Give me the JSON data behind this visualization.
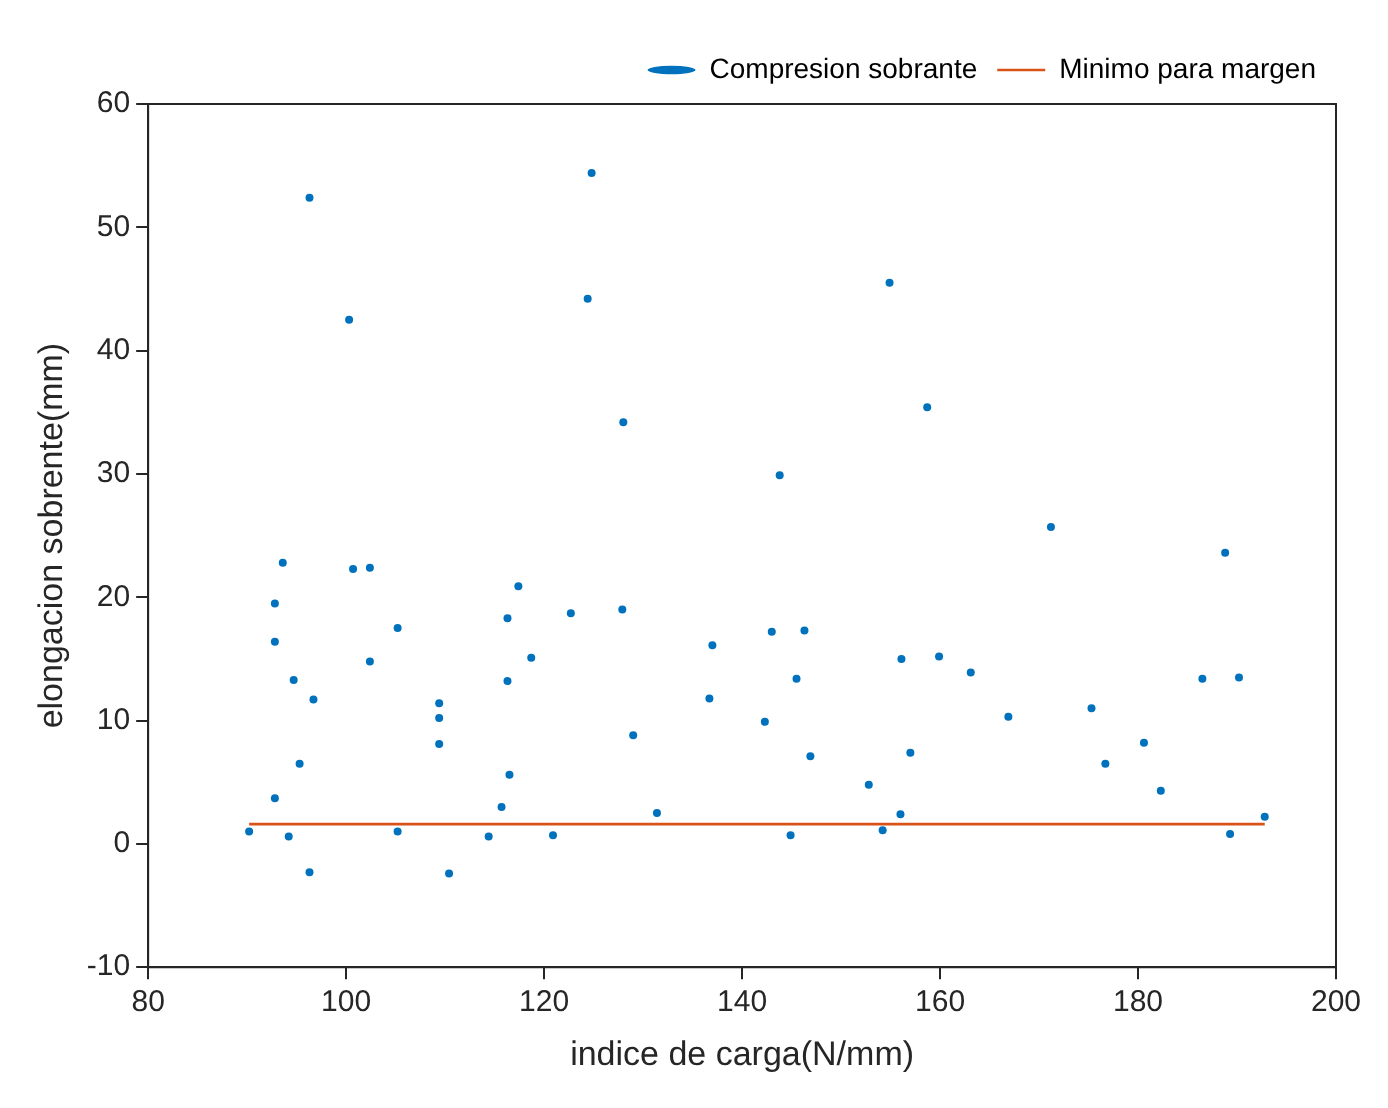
{
  "chart_data": {
    "type": "scatter",
    "xlabel": "indice de carga(N/mm)",
    "ylabel": "elongacion sobrente(mm)",
    "xlim": [
      80,
      200
    ],
    "xticks": [
      80,
      100,
      120,
      140,
      160,
      180,
      200
    ],
    "ylim": [
      -10,
      60
    ],
    "yticks": [
      -10,
      0,
      10,
      20,
      30,
      40,
      50,
      60
    ],
    "grid": false,
    "legend": "top right",
    "marker": "circle",
    "series": [
      {
        "name": "Compresion sobrante",
        "color": "#0072bd",
        "x": [
          90.2,
          92.8,
          92.8,
          92.8,
          93.6,
          94.2,
          94.7,
          95.3,
          96.3,
          96.3,
          96.7,
          100.3,
          100.7,
          102.4,
          102.4,
          105.2,
          105.2,
          109.4,
          109.4,
          109.4,
          110.4,
          114.4,
          115.7,
          116.3,
          116.3,
          116.5,
          117.4,
          118.7,
          120.9,
          122.7,
          124.4,
          124.8,
          127.9,
          128.0,
          129.0,
          131.4,
          136.7,
          137.0,
          142.3,
          143.0,
          143.8,
          144.9,
          145.5,
          146.3,
          146.9,
          152.8,
          154.2,
          154.9,
          156.0,
          156.1,
          157.0,
          158.7,
          159.9,
          163.1,
          166.9,
          171.2,
          175.3,
          176.7,
          180.6,
          182.3,
          186.5,
          188.8,
          189.3,
          190.2,
          192.8
        ],
        "values": [
          1.0,
          19.5,
          16.4,
          3.7,
          22.8,
          0.6,
          13.3,
          6.5,
          52.4,
          -2.3,
          11.7,
          42.5,
          22.3,
          22.4,
          14.8,
          17.5,
          1.0,
          11.4,
          10.2,
          8.1,
          -2.4,
          0.6,
          3.0,
          18.3,
          13.2,
          5.6,
          20.9,
          15.1,
          0.7,
          18.7,
          44.2,
          54.4,
          19.0,
          34.2,
          8.8,
          2.5,
          11.8,
          16.1,
          9.9,
          17.2,
          29.9,
          0.7,
          13.4,
          17.3,
          7.1,
          4.8,
          1.1,
          45.5,
          2.4,
          15.0,
          7.4,
          35.4,
          15.2,
          13.9,
          10.3,
          25.7,
          11.0,
          6.5,
          8.2,
          4.3,
          13.4,
          23.6,
          0.8,
          13.5,
          2.2
        ]
      },
      {
        "name": "Minimo para margen",
        "type": "line",
        "color": "#d95319",
        "marker": "none",
        "line_style": "solid",
        "x": [
          90.2,
          192.8
        ],
        "values": [
          1.6,
          1.6
        ]
      }
    ]
  }
}
